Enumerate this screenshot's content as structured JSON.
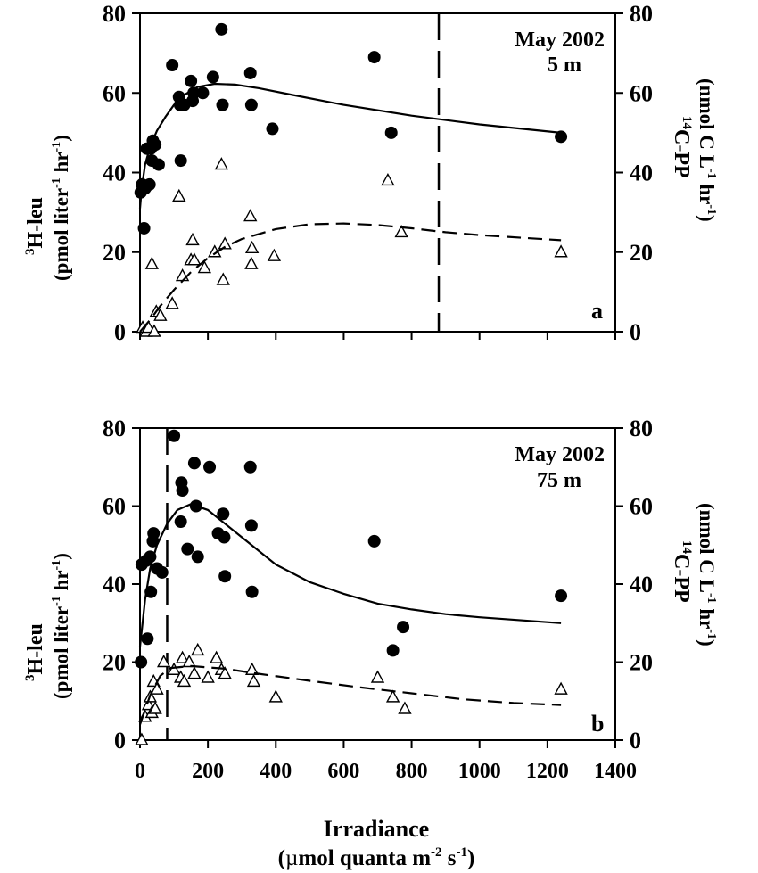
{
  "figure": {
    "xlabel": "Irradiance",
    "xlabel_units_prefix": "(",
    "xlabel_mu": "µ",
    "xlabel_units_main": "mol quanta  m",
    "xlabel_exp1": "-2",
    "xlabel_mid": " s",
    "xlabel_exp2": "-1",
    "xlabel_close": ")"
  },
  "chart_data": [
    {
      "type": "scatter",
      "panel_label": "a",
      "annotation_line1": "May 2002",
      "annotation_line2": "5 m",
      "left_axis": {
        "sup": "3",
        "name": "H-leu",
        "unit_a": "(pmol liter",
        "unit_exp1": "-1",
        "unit_b": " hr",
        "unit_exp2": "-1",
        "unit_close": ")",
        "range": [
          0,
          80
        ],
        "ticks": [
          0,
          20,
          40,
          60,
          80
        ]
      },
      "right_axis": {
        "sup": "14",
        "name": "C-PP",
        "unit_a": "(nmol C L",
        "unit_exp1": "-1",
        "unit_b": "  hr",
        "unit_exp2": "-1",
        "unit_close": ")",
        "range": [
          0,
          80
        ],
        "ticks": [
          0,
          20,
          40,
          60,
          80
        ]
      },
      "x_range": [
        0,
        1400
      ],
      "x_ticks": [],
      "vertical_dashed_line_x": 880,
      "series": [
        {
          "marker": "filled-circle",
          "points": [
            [
              2,
              35
            ],
            [
              6,
              37
            ],
            [
              12,
              26
            ],
            [
              15,
              36
            ],
            [
              20,
              46
            ],
            [
              28,
              37
            ],
            [
              32,
              46
            ],
            [
              35,
              43
            ],
            [
              38,
              48
            ],
            [
              45,
              47
            ],
            [
              55,
              42
            ],
            [
              95,
              67
            ],
            [
              115,
              59
            ],
            [
              118,
              57
            ],
            [
              120,
              43
            ],
            [
              130,
              57
            ],
            [
              150,
              63
            ],
            [
              155,
              58
            ],
            [
              158,
              60
            ],
            [
              185,
              60
            ],
            [
              215,
              64
            ],
            [
              240,
              76
            ],
            [
              243,
              57
            ],
            [
              325,
              65
            ],
            [
              328,
              57
            ],
            [
              390,
              51
            ],
            [
              690,
              69
            ],
            [
              740,
              50
            ],
            [
              1240,
              49
            ]
          ]
        },
        {
          "marker": "open-triangle",
          "points": [
            [
              8,
              1
            ],
            [
              18,
              0
            ],
            [
              25,
              1
            ],
            [
              35,
              17
            ],
            [
              42,
              0
            ],
            [
              48,
              5
            ],
            [
              60,
              4
            ],
            [
              95,
              7
            ],
            [
              115,
              34
            ],
            [
              125,
              14
            ],
            [
              150,
              18
            ],
            [
              155,
              23
            ],
            [
              160,
              18
            ],
            [
              190,
              16
            ],
            [
              220,
              20
            ],
            [
              240,
              42
            ],
            [
              245,
              13
            ],
            [
              250,
              22
            ],
            [
              325,
              29
            ],
            [
              328,
              17
            ],
            [
              330,
              21
            ],
            [
              395,
              19
            ],
            [
              730,
              38
            ],
            [
              770,
              25
            ],
            [
              1240,
              20
            ]
          ]
        },
        {
          "fit": "solid",
          "points": [
            [
              0,
              31
            ],
            [
              5,
              36
            ],
            [
              15,
              42
            ],
            [
              30,
              46.5
            ],
            [
              50,
              50.5
            ],
            [
              75,
              54
            ],
            [
              100,
              57
            ],
            [
              130,
              59.5
            ],
            [
              170,
              61.5
            ],
            [
              220,
              62.3
            ],
            [
              280,
              62.1
            ],
            [
              350,
              61.2
            ],
            [
              450,
              59.5
            ],
            [
              600,
              57
            ],
            [
              800,
              54.3
            ],
            [
              1000,
              52.1
            ],
            [
              1240,
              50
            ]
          ]
        },
        {
          "fit": "dashed",
          "points": [
            [
              0,
              0
            ],
            [
              30,
              3
            ],
            [
              60,
              6.5
            ],
            [
              100,
              10.5
            ],
            [
              150,
              15
            ],
            [
              200,
              18.5
            ],
            [
              250,
              21.3
            ],
            [
              300,
              23.3
            ],
            [
              400,
              25.8
            ],
            [
              500,
              27
            ],
            [
              600,
              27.2
            ],
            [
              700,
              26.8
            ],
            [
              800,
              26
            ],
            [
              900,
              25
            ],
            [
              1000,
              24.3
            ],
            [
              1240,
              23
            ]
          ]
        }
      ]
    },
    {
      "type": "scatter",
      "panel_label": "b",
      "annotation_line1": "May 2002",
      "annotation_line2": "75 m",
      "left_axis": {
        "sup": "3",
        "name": "H-leu",
        "unit_a": "(pmol liter",
        "unit_exp1": "-1",
        "unit_b": " hr",
        "unit_exp2": "-1",
        "unit_close": ")",
        "range": [
          0,
          80
        ],
        "ticks": [
          0,
          20,
          40,
          60,
          80
        ]
      },
      "right_axis": {
        "sup": "14",
        "name": "C-PP",
        "unit_a": "(nmol C L",
        "unit_exp1": "-1",
        "unit_b": "  hr",
        "unit_exp2": "-1",
        "unit_close": ")",
        "range": [
          0,
          80
        ],
        "ticks": [
          0,
          20,
          40,
          60,
          80
        ]
      },
      "x_range": [
        0,
        1400
      ],
      "x_ticks": [
        0,
        200,
        400,
        600,
        800,
        1000,
        1200,
        1400
      ],
      "vertical_dashed_line_x": 80,
      "series": [
        {
          "marker": "filled-circle",
          "points": [
            [
              3,
              20
            ],
            [
              5,
              45
            ],
            [
              18,
              46
            ],
            [
              22,
              26
            ],
            [
              30,
              47
            ],
            [
              32,
              38
            ],
            [
              38,
              51
            ],
            [
              40,
              53
            ],
            [
              50,
              44
            ],
            [
              65,
              43
            ],
            [
              100,
              78
            ],
            [
              120,
              56
            ],
            [
              122,
              66
            ],
            [
              125,
              64
            ],
            [
              140,
              49
            ],
            [
              160,
              71
            ],
            [
              165,
              60
            ],
            [
              170,
              47
            ],
            [
              205,
              70
            ],
            [
              230,
              53
            ],
            [
              245,
              58
            ],
            [
              248,
              52
            ],
            [
              250,
              42
            ],
            [
              325,
              70
            ],
            [
              328,
              55
            ],
            [
              330,
              38
            ],
            [
              690,
              51
            ],
            [
              745,
              23
            ],
            [
              775,
              29
            ],
            [
              1240,
              37
            ]
          ]
        },
        {
          "marker": "open-triangle",
          "points": [
            [
              5,
              0
            ],
            [
              15,
              6
            ],
            [
              25,
              9
            ],
            [
              30,
              11
            ],
            [
              35,
              7
            ],
            [
              40,
              15
            ],
            [
              45,
              8
            ],
            [
              50,
              13
            ],
            [
              70,
              20
            ],
            [
              100,
              18
            ],
            [
              120,
              16
            ],
            [
              125,
              21
            ],
            [
              130,
              15
            ],
            [
              145,
              20
            ],
            [
              160,
              17
            ],
            [
              170,
              23
            ],
            [
              200,
              16
            ],
            [
              225,
              21
            ],
            [
              240,
              18
            ],
            [
              250,
              17
            ],
            [
              330,
              18
            ],
            [
              335,
              15
            ],
            [
              400,
              11
            ],
            [
              700,
              16
            ],
            [
              745,
              11
            ],
            [
              780,
              8
            ],
            [
              1240,
              13
            ]
          ]
        },
        {
          "fit": "solid",
          "points": [
            [
              0,
              24
            ],
            [
              15,
              36
            ],
            [
              30,
              44
            ],
            [
              50,
              50
            ],
            [
              80,
              55.5
            ],
            [
              110,
              59
            ],
            [
              150,
              60.5
            ],
            [
              200,
              59
            ],
            [
              250,
              55.5
            ],
            [
              300,
              52
            ],
            [
              400,
              45
            ],
            [
              500,
              40.5
            ],
            [
              600,
              37.5
            ],
            [
              700,
              35
            ],
            [
              800,
              33.5
            ],
            [
              900,
              32.3
            ],
            [
              1000,
              31.5
            ],
            [
              1240,
              30
            ]
          ]
        },
        {
          "fit": "dashed",
          "points": [
            [
              0,
              4
            ],
            [
              30,
              11.5
            ],
            [
              60,
              16.5
            ],
            [
              90,
              18.5
            ],
            [
              150,
              19
            ],
            [
              250,
              18.3
            ],
            [
              350,
              17
            ],
            [
              500,
              15.2
            ],
            [
              650,
              13.5
            ],
            [
              800,
              12
            ],
            [
              950,
              10.5
            ],
            [
              1100,
              9.5
            ],
            [
              1240,
              9
            ]
          ]
        }
      ]
    }
  ]
}
